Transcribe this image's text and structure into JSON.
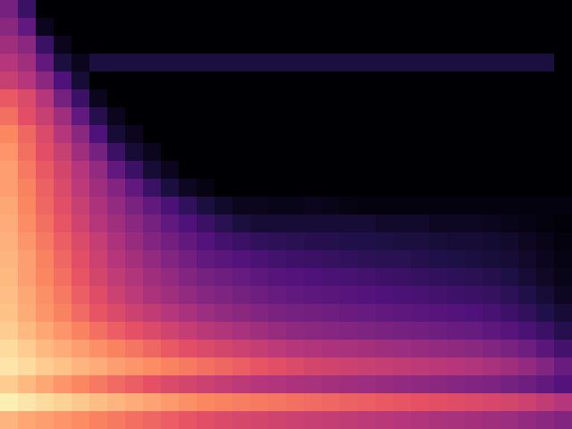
{
  "chart_data": {
    "type": "heatmap",
    "tick_labels": false,
    "color_range": [
      0,
      1
    ],
    "cells": [
      [
        0.35,
        0.2,
        0,
        0,
        0,
        0,
        0,
        0,
        0,
        0,
        0,
        0,
        0,
        0,
        0,
        0,
        0,
        0,
        0,
        0,
        0,
        0,
        0,
        0,
        0,
        0,
        0,
        0,
        0,
        0,
        0,
        0
      ],
      [
        0.4,
        0.3,
        0.05,
        0,
        0,
        0,
        0,
        0,
        0,
        0,
        0,
        0,
        0,
        0,
        0,
        0,
        0,
        0,
        0,
        0,
        0,
        0,
        0,
        0,
        0,
        0,
        0,
        0,
        0,
        0,
        0,
        0
      ],
      [
        0.45,
        0.4,
        0.2,
        0.05,
        0,
        0,
        0,
        0,
        0,
        0,
        0,
        0,
        0,
        0,
        0,
        0,
        0,
        0,
        0,
        0,
        0,
        0,
        0,
        0,
        0,
        0,
        0,
        0,
        0,
        0,
        0,
        0
      ],
      [
        0.5,
        0.45,
        0.3,
        0.12,
        0.05,
        0.12,
        0.12,
        0.12,
        0.12,
        0.12,
        0.12,
        0.12,
        0.12,
        0.12,
        0.12,
        0.12,
        0.12,
        0.12,
        0.12,
        0.12,
        0.12,
        0.12,
        0.12,
        0.12,
        0.12,
        0.12,
        0.12,
        0.12,
        0.12,
        0.12,
        0.12,
        0
      ],
      [
        0.55,
        0.5,
        0.4,
        0.25,
        0.1,
        0,
        0,
        0,
        0,
        0,
        0,
        0,
        0,
        0,
        0,
        0,
        0,
        0,
        0,
        0,
        0,
        0,
        0,
        0,
        0,
        0,
        0,
        0,
        0,
        0,
        0,
        0
      ],
      [
        0.65,
        0.6,
        0.5,
        0.35,
        0.2,
        0.05,
        0,
        0,
        0,
        0,
        0,
        0,
        0,
        0,
        0,
        0,
        0,
        0,
        0,
        0,
        0,
        0,
        0,
        0,
        0,
        0,
        0,
        0,
        0,
        0,
        0,
        0
      ],
      [
        0.7,
        0.62,
        0.55,
        0.45,
        0.3,
        0.15,
        0.05,
        0,
        0,
        0,
        0,
        0,
        0,
        0,
        0,
        0,
        0,
        0,
        0,
        0,
        0,
        0,
        0,
        0,
        0,
        0,
        0,
        0,
        0,
        0,
        0,
        0
      ],
      [
        0.75,
        0.68,
        0.6,
        0.5,
        0.4,
        0.25,
        0.1,
        0.05,
        0,
        0,
        0,
        0,
        0,
        0,
        0,
        0,
        0,
        0,
        0,
        0,
        0,
        0,
        0,
        0,
        0,
        0,
        0,
        0,
        0,
        0,
        0,
        0
      ],
      [
        0.78,
        0.7,
        0.62,
        0.55,
        0.45,
        0.35,
        0.2,
        0.1,
        0.05,
        0,
        0,
        0,
        0,
        0,
        0,
        0,
        0,
        0,
        0,
        0,
        0,
        0,
        0,
        0,
        0,
        0,
        0,
        0,
        0,
        0,
        0,
        0
      ],
      [
        0.8,
        0.72,
        0.65,
        0.58,
        0.5,
        0.42,
        0.3,
        0.2,
        0.1,
        0.05,
        0,
        0,
        0,
        0,
        0,
        0,
        0,
        0,
        0,
        0,
        0,
        0,
        0,
        0,
        0,
        0,
        0,
        0,
        0,
        0,
        0,
        0
      ],
      [
        0.8,
        0.74,
        0.67,
        0.6,
        0.52,
        0.45,
        0.38,
        0.3,
        0.2,
        0.12,
        0.06,
        0.03,
        0,
        0,
        0,
        0,
        0,
        0,
        0,
        0,
        0,
        0,
        0,
        0,
        0,
        0,
        0,
        0,
        0,
        0,
        0,
        0
      ],
      [
        0.82,
        0.75,
        0.68,
        0.62,
        0.55,
        0.48,
        0.42,
        0.36,
        0.3,
        0.24,
        0.18,
        0.12,
        0.08,
        0.05,
        0.05,
        0.04,
        0.04,
        0.05,
        0.04,
        0.03,
        0.02,
        0.02,
        0.02,
        0.02,
        0.02,
        0.02,
        0.02,
        0.02,
        0.02,
        0.02,
        0.02,
        0.02
      ],
      [
        0.83,
        0.76,
        0.7,
        0.64,
        0.57,
        0.5,
        0.45,
        0.4,
        0.35,
        0.3,
        0.25,
        0.2,
        0.16,
        0.12,
        0.1,
        0.1,
        0.1,
        0.1,
        0.1,
        0.1,
        0.1,
        0.08,
        0.08,
        0.08,
        0.06,
        0.06,
        0.06,
        0.05,
        0.04,
        0.03,
        0.02,
        0.01
      ],
      [
        0.84,
        0.78,
        0.72,
        0.66,
        0.6,
        0.54,
        0.48,
        0.43,
        0.38,
        0.34,
        0.3,
        0.26,
        0.22,
        0.2,
        0.18,
        0.17,
        0.16,
        0.15,
        0.15,
        0.14,
        0.14,
        0.13,
        0.12,
        0.12,
        0.11,
        0.1,
        0.1,
        0.09,
        0.08,
        0.06,
        0.04,
        0.02
      ],
      [
        0.85,
        0.8,
        0.74,
        0.68,
        0.62,
        0.56,
        0.5,
        0.46,
        0.42,
        0.38,
        0.34,
        0.3,
        0.28,
        0.26,
        0.24,
        0.22,
        0.21,
        0.2,
        0.19,
        0.18,
        0.17,
        0.16,
        0.16,
        0.15,
        0.14,
        0.13,
        0.12,
        0.11,
        0.1,
        0.08,
        0.05,
        0.03
      ],
      [
        0.86,
        0.8,
        0.75,
        0.7,
        0.64,
        0.58,
        0.53,
        0.49,
        0.45,
        0.42,
        0.38,
        0.35,
        0.33,
        0.31,
        0.29,
        0.27,
        0.26,
        0.25,
        0.24,
        0.23,
        0.22,
        0.21,
        0.2,
        0.19,
        0.18,
        0.17,
        0.16,
        0.15,
        0.13,
        0.1,
        0.07,
        0.04
      ],
      [
        0.87,
        0.82,
        0.77,
        0.72,
        0.66,
        0.61,
        0.56,
        0.52,
        0.48,
        0.45,
        0.42,
        0.39,
        0.37,
        0.35,
        0.33,
        0.31,
        0.3,
        0.29,
        0.28,
        0.27,
        0.26,
        0.25,
        0.24,
        0.23,
        0.22,
        0.21,
        0.2,
        0.19,
        0.17,
        0.14,
        0.1,
        0.06
      ],
      [
        0.88,
        0.83,
        0.78,
        0.74,
        0.69,
        0.64,
        0.6,
        0.56,
        0.53,
        0.5,
        0.47,
        0.44,
        0.42,
        0.4,
        0.38,
        0.36,
        0.35,
        0.34,
        0.33,
        0.32,
        0.31,
        0.3,
        0.29,
        0.28,
        0.27,
        0.26,
        0.25,
        0.23,
        0.21,
        0.18,
        0.14,
        0.1
      ],
      [
        0.9,
        0.86,
        0.82,
        0.78,
        0.74,
        0.7,
        0.66,
        0.63,
        0.6,
        0.57,
        0.54,
        0.51,
        0.49,
        0.47,
        0.45,
        0.43,
        0.41,
        0.4,
        0.39,
        0.38,
        0.37,
        0.36,
        0.35,
        0.34,
        0.33,
        0.32,
        0.31,
        0.29,
        0.27,
        0.24,
        0.2,
        0.15
      ],
      [
        0.93,
        0.9,
        0.86,
        0.83,
        0.8,
        0.77,
        0.74,
        0.71,
        0.68,
        0.65,
        0.62,
        0.6,
        0.58,
        0.56,
        0.54,
        0.52,
        0.5,
        0.49,
        0.48,
        0.47,
        0.46,
        0.45,
        0.44,
        0.43,
        0.42,
        0.41,
        0.4,
        0.38,
        0.36,
        0.33,
        0.28,
        0.22
      ],
      [
        0.95,
        0.93,
        0.9,
        0.88,
        0.85,
        0.83,
        0.8,
        0.78,
        0.76,
        0.74,
        0.72,
        0.7,
        0.68,
        0.66,
        0.64,
        0.62,
        0.6,
        0.58,
        0.57,
        0.56,
        0.55,
        0.54,
        0.53,
        0.52,
        0.51,
        0.5,
        0.49,
        0.47,
        0.45,
        0.42,
        0.38,
        0.32
      ],
      [
        0.9,
        0.86,
        0.82,
        0.78,
        0.75,
        0.72,
        0.69,
        0.66,
        0.63,
        0.6,
        0.58,
        0.56,
        0.54,
        0.52,
        0.5,
        0.49,
        0.48,
        0.47,
        0.46,
        0.45,
        0.44,
        0.43,
        0.42,
        0.41,
        0.4,
        0.39,
        0.38,
        0.37,
        0.35,
        0.33,
        0.3,
        0.26
      ],
      [
        0.97,
        0.95,
        0.93,
        0.91,
        0.89,
        0.87,
        0.85,
        0.83,
        0.81,
        0.79,
        0.77,
        0.75,
        0.74,
        0.73,
        0.72,
        0.71,
        0.7,
        0.69,
        0.68,
        0.67,
        0.66,
        0.65,
        0.64,
        0.63,
        0.62,
        0.61,
        0.6,
        0.59,
        0.58,
        0.56,
        0.53,
        0.5
      ],
      [
        0.85,
        0.82,
        0.8,
        0.78,
        0.76,
        0.74,
        0.72,
        0.7,
        0.68,
        0.66,
        0.64,
        0.62,
        0.6,
        0.59,
        0.58,
        0.57,
        0.56,
        0.55,
        0.54,
        0.53,
        0.52,
        0.51,
        0.5,
        0.49,
        0.48,
        0.47,
        0.46,
        0.45,
        0.44,
        0.42,
        0.4,
        0.38
      ]
    ]
  }
}
